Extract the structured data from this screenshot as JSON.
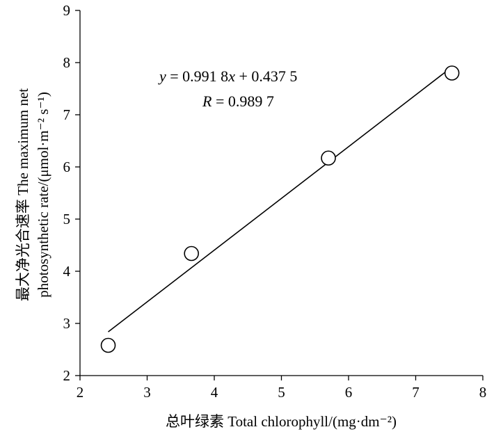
{
  "chart_data": {
    "type": "scatter",
    "xlabel": "总叶绿素 Total chlorophyll/(mg·dm⁻²)",
    "ylabel_line1": "最大净光合速率 The maximum net",
    "ylabel_line2": "photosynthetic rate/(μmol·m⁻² s⁻¹)",
    "xlim": [
      2,
      8
    ],
    "ylim": [
      2,
      9
    ],
    "xticks": [
      2,
      3,
      4,
      5,
      6,
      7,
      8
    ],
    "yticks": [
      2,
      3,
      4,
      5,
      6,
      7,
      8,
      9
    ],
    "grid": false,
    "points": [
      {
        "x": 2.42,
        "y": 2.58
      },
      {
        "x": 3.66,
        "y": 4.34
      },
      {
        "x": 5.7,
        "y": 6.17
      },
      {
        "x": 7.54,
        "y": 7.8
      }
    ],
    "fit": {
      "slope": 0.9918,
      "intercept": 0.4375,
      "x_range": [
        2.42,
        7.47
      ]
    },
    "annotations": {
      "equation": {
        "y": "y",
        "eq1": " = 0.991 8",
        "x": "x",
        "eq2": " + 0.437 5"
      },
      "r": {
        "R": "R",
        "eq": " = 0.989 7"
      }
    }
  }
}
